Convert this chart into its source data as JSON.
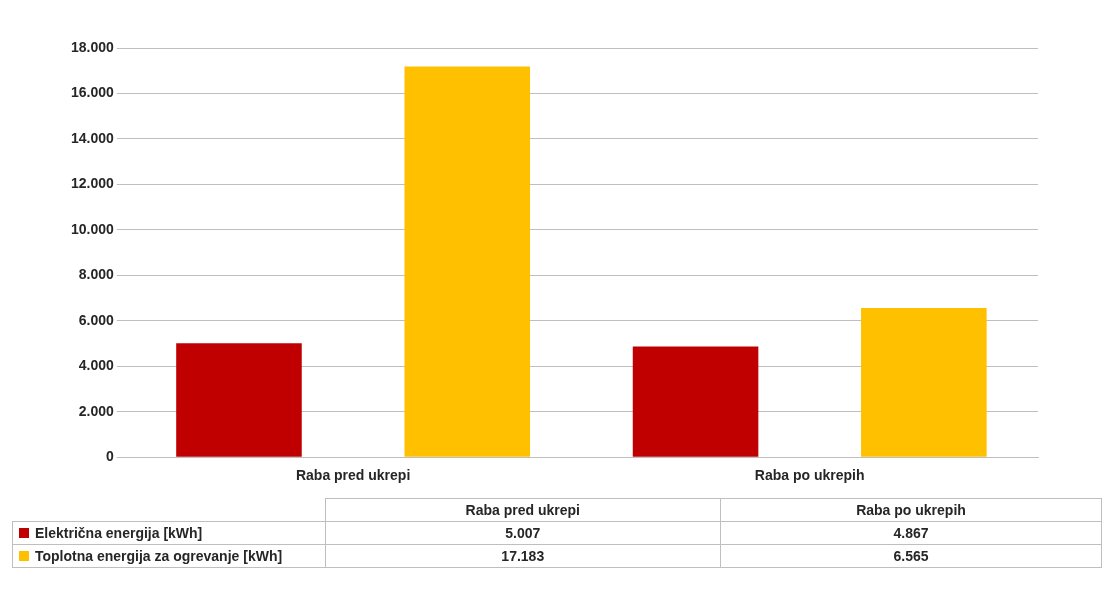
{
  "chart_data": {
    "type": "bar",
    "categories": [
      "Raba pred ukrepi",
      "Raba po ukrepih"
    ],
    "series": [
      {
        "name": "Električna energija [kWh]",
        "color": "#c00000",
        "values": [
          5007,
          4867
        ],
        "value_labels": [
          "5.007",
          "4.867"
        ]
      },
      {
        "name": "Toplotna energija za ogrevanje [kWh]",
        "color": "#ffc000",
        "values": [
          17183,
          6565
        ],
        "value_labels": [
          "17.183",
          "6.565"
        ]
      }
    ],
    "ylim": [
      0,
      18000
    ],
    "yticks": [
      {
        "value": 0,
        "label": "0"
      },
      {
        "value": 2000,
        "label": "2.000"
      },
      {
        "value": 4000,
        "label": "4.000"
      },
      {
        "value": 6000,
        "label": "6.000"
      },
      {
        "value": 8000,
        "label": "8.000"
      },
      {
        "value": 10000,
        "label": "10.000"
      },
      {
        "value": 12000,
        "label": "12.000"
      },
      {
        "value": 14000,
        "label": "14.000"
      },
      {
        "value": 16000,
        "label": "16.000"
      },
      {
        "value": 18000,
        "label": "18.000"
      }
    ],
    "grid": "y",
    "legend": "bottom"
  }
}
